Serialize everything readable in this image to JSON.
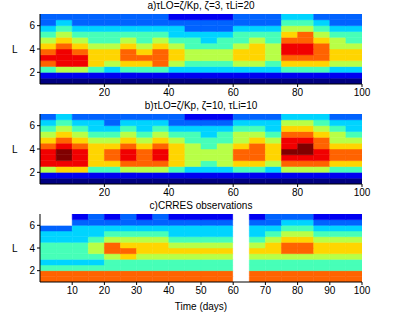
{
  "chart_data": [
    {
      "type": "heatmap",
      "title": "a)τLO=ζ/Kp, ζ=3, τLi=20",
      "ylabel": "L",
      "xlim": [
        0,
        100
      ],
      "ylim": [
        1,
        7
      ],
      "xticks": [
        20,
        40,
        60,
        80,
        100
      ],
      "yticks": [
        2,
        4,
        6
      ],
      "zlim": [
        0,
        9
      ],
      "x_bins": [
        0,
        5,
        10,
        15,
        20,
        25,
        30,
        35,
        40,
        45,
        50,
        55,
        60,
        65,
        70,
        75,
        80,
        85,
        90,
        95,
        100
      ],
      "y_bins": [
        1,
        1.5,
        2,
        2.5,
        3,
        3.5,
        4,
        4.5,
        5,
        5.5,
        6,
        6.5,
        7
      ],
      "cells": [
        [
          0,
          0,
          0,
          0,
          0,
          0,
          0,
          0,
          0,
          0,
          0,
          0,
          0,
          0,
          0,
          0,
          0,
          0,
          0,
          0
        ],
        [
          1,
          1,
          1,
          1,
          1,
          1,
          1,
          1,
          1,
          1,
          1,
          1,
          1,
          1,
          1,
          1,
          1,
          1,
          1,
          1
        ],
        [
          4,
          5,
          5,
          4,
          3,
          4,
          4,
          4,
          3,
          3,
          3,
          3,
          3,
          3,
          3,
          4,
          4,
          4,
          3,
          3
        ],
        [
          7,
          8,
          8,
          6,
          5,
          6,
          6,
          7,
          5,
          4,
          4,
          4,
          5,
          5,
          4,
          6,
          6,
          6,
          5,
          5
        ],
        [
          8,
          8,
          8,
          6,
          6,
          7,
          7,
          7,
          6,
          5,
          5,
          5,
          6,
          6,
          5,
          7,
          7,
          7,
          6,
          6
        ],
        [
          7,
          8,
          7,
          6,
          6,
          7,
          6,
          7,
          6,
          5,
          5,
          5,
          6,
          6,
          5,
          8,
          8,
          7,
          6,
          6
        ],
        [
          6,
          7,
          6,
          5,
          5,
          6,
          5,
          6,
          5,
          4,
          4,
          4,
          5,
          6,
          5,
          8,
          8,
          7,
          5,
          5
        ],
        [
          5,
          6,
          5,
          4,
          4,
          5,
          4,
          5,
          4,
          4,
          3,
          4,
          4,
          5,
          4,
          7,
          7,
          6,
          5,
          4
        ],
        [
          4,
          5,
          4,
          4,
          4,
          4,
          4,
          4,
          3,
          3,
          3,
          3,
          4,
          4,
          4,
          6,
          7,
          5,
          4,
          4
        ],
        [
          3,
          4,
          3,
          3,
          3,
          3,
          3,
          3,
          3,
          2,
          2,
          2,
          3,
          3,
          3,
          5,
          5,
          4,
          3,
          3
        ],
        [
          2,
          3,
          2,
          2,
          2,
          2,
          2,
          2,
          2,
          2,
          2,
          2,
          2,
          2,
          2,
          4,
          4,
          3,
          2,
          2
        ],
        [
          2,
          2,
          2,
          2,
          2,
          2,
          2,
          2,
          1,
          1,
          1,
          1,
          2,
          2,
          2,
          3,
          3,
          2,
          2,
          2
        ]
      ]
    },
    {
      "type": "heatmap",
      "title": "b)τLO=ζ/Kp, ζ=10, τLi=10",
      "ylabel": "L",
      "xlim": [
        0,
        100
      ],
      "ylim": [
        1,
        7
      ],
      "xticks": [
        20,
        40,
        60,
        80,
        100
      ],
      "yticks": [
        2,
        4,
        6
      ],
      "zlim": [
        0,
        9
      ],
      "x_bins": [
        0,
        5,
        10,
        15,
        20,
        25,
        30,
        35,
        40,
        45,
        50,
        55,
        60,
        65,
        70,
        75,
        80,
        85,
        90,
        95,
        100
      ],
      "y_bins": [
        1,
        1.5,
        2,
        2.5,
        3,
        3.5,
        4,
        4.5,
        5,
        5.5,
        6,
        6.5,
        7
      ],
      "cells": [
        [
          0,
          0,
          0,
          0,
          0,
          0,
          0,
          0,
          0,
          0,
          0,
          0,
          0,
          0,
          0,
          0,
          0,
          0,
          0,
          0
        ],
        [
          1,
          1,
          1,
          1,
          1,
          1,
          1,
          1,
          1,
          1,
          1,
          1,
          1,
          1,
          1,
          1,
          1,
          1,
          1,
          1
        ],
        [
          5,
          6,
          6,
          4,
          4,
          5,
          5,
          5,
          4,
          3,
          3,
          3,
          4,
          4,
          3,
          5,
          5,
          5,
          4,
          4
        ],
        [
          8,
          8,
          8,
          6,
          6,
          7,
          7,
          7,
          6,
          5,
          4,
          5,
          6,
          6,
          5,
          7,
          7,
          7,
          6,
          6
        ],
        [
          8,
          9,
          8,
          6,
          7,
          8,
          7,
          8,
          6,
          5,
          5,
          5,
          7,
          7,
          6,
          8,
          8,
          8,
          7,
          7
        ],
        [
          8,
          9,
          8,
          6,
          7,
          8,
          7,
          8,
          6,
          5,
          5,
          5,
          7,
          7,
          6,
          9,
          9,
          8,
          7,
          7
        ],
        [
          7,
          8,
          7,
          6,
          6,
          7,
          6,
          7,
          6,
          5,
          4,
          5,
          6,
          7,
          6,
          8,
          9,
          7,
          6,
          6
        ],
        [
          6,
          7,
          6,
          5,
          5,
          6,
          5,
          6,
          5,
          4,
          4,
          4,
          5,
          6,
          5,
          8,
          8,
          7,
          5,
          5
        ],
        [
          5,
          6,
          5,
          4,
          4,
          5,
          4,
          5,
          4,
          4,
          3,
          4,
          5,
          5,
          4,
          7,
          7,
          6,
          5,
          4
        ],
        [
          4,
          5,
          4,
          3,
          3,
          4,
          3,
          4,
          3,
          3,
          3,
          3,
          4,
          4,
          3,
          6,
          6,
          5,
          4,
          3
        ],
        [
          3,
          4,
          3,
          3,
          2,
          3,
          3,
          3,
          2,
          2,
          2,
          2,
          3,
          3,
          3,
          5,
          5,
          4,
          3,
          3
        ],
        [
          2,
          3,
          2,
          2,
          2,
          2,
          2,
          2,
          2,
          1,
          1,
          1,
          2,
          2,
          2,
          3,
          3,
          3,
          2,
          2
        ]
      ]
    },
    {
      "type": "heatmap",
      "title": "c)CRRES observations",
      "ylabel": "L",
      "xlabel": "Time (days)",
      "xlim": [
        0,
        100
      ],
      "ylim": [
        1,
        7
      ],
      "xticks": [
        10,
        20,
        30,
        40,
        50,
        60,
        70,
        80,
        90,
        100
      ],
      "yticks": [
        2,
        4,
        6
      ],
      "zlim": [
        0,
        9
      ],
      "x_bins": [
        0,
        5,
        10,
        15,
        20,
        25,
        30,
        35,
        40,
        45,
        50,
        55,
        60,
        65,
        70,
        75,
        80,
        85,
        90,
        95,
        100
      ],
      "y_bins": [
        1,
        1.5,
        2,
        2.5,
        3,
        3.5,
        4,
        4.5,
        5,
        5.5,
        6,
        6.5,
        7
      ],
      "cells": [
        [
          7,
          7,
          7,
          7,
          7,
          7,
          7,
          7,
          7,
          7,
          7,
          7,
          null,
          7,
          7,
          7,
          7,
          7,
          7,
          7
        ],
        [
          7,
          7,
          7,
          7,
          7,
          7,
          7,
          7,
          7,
          7,
          7,
          7,
          null,
          7,
          7,
          7,
          7,
          7,
          7,
          7
        ],
        [
          4,
          4,
          4,
          4,
          4,
          4,
          4,
          4,
          4,
          4,
          4,
          4,
          null,
          4,
          4,
          4,
          4,
          4,
          4,
          4
        ],
        [
          3,
          3,
          3,
          3,
          4,
          4,
          4,
          4,
          4,
          4,
          4,
          4,
          null,
          4,
          4,
          4,
          4,
          4,
          4,
          4
        ],
        [
          4,
          4,
          4,
          4,
          5,
          6,
          5,
          5,
          5,
          5,
          5,
          5,
          null,
          5,
          5,
          5,
          5,
          5,
          5,
          5
        ],
        [
          4,
          4,
          4,
          5,
          7,
          7,
          6,
          6,
          6,
          6,
          6,
          6,
          null,
          6,
          6,
          7,
          7,
          6,
          6,
          6
        ],
        [
          4,
          4,
          4,
          5,
          7,
          6,
          6,
          6,
          5,
          5,
          5,
          5,
          null,
          5,
          6,
          7,
          7,
          6,
          6,
          6
        ],
        [
          3,
          3,
          3,
          4,
          5,
          5,
          5,
          5,
          4,
          4,
          4,
          4,
          null,
          4,
          5,
          6,
          6,
          5,
          5,
          5
        ],
        [
          3,
          3,
          3,
          3,
          4,
          4,
          4,
          4,
          3,
          3,
          3,
          3,
          null,
          3,
          4,
          5,
          5,
          4,
          4,
          4
        ],
        [
          2,
          2,
          3,
          3,
          3,
          3,
          3,
          3,
          3,
          3,
          3,
          3,
          null,
          3,
          3,
          4,
          4,
          3,
          3,
          3
        ],
        [
          null,
          null,
          2,
          2,
          2,
          2,
          2,
          2,
          2,
          2,
          2,
          2,
          null,
          2,
          2,
          3,
          3,
          2,
          2,
          2
        ],
        [
          null,
          null,
          1,
          2,
          1,
          2,
          1,
          2,
          1,
          1,
          1,
          1,
          null,
          1,
          2,
          2,
          2,
          1,
          1,
          1
        ]
      ]
    }
  ]
}
